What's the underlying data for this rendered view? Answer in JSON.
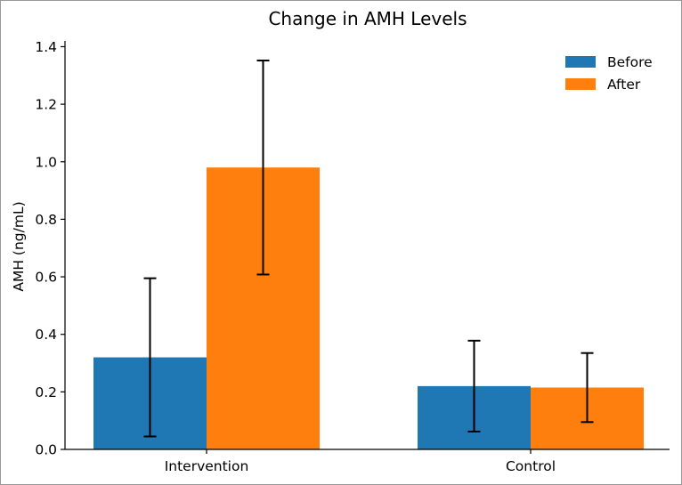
{
  "chart_data": {
    "type": "bar",
    "title": "Change in AMH Levels",
    "xlabel": "",
    "ylabel": "AMH (ng/mL)",
    "categories": [
      "Intervention",
      "Control"
    ],
    "series": [
      {
        "name": "Before",
        "color": "#1f77b4",
        "values": [
          0.32,
          0.22
        ],
        "errors": [
          0.275,
          0.158
        ]
      },
      {
        "name": "After",
        "color": "#ff7f0e",
        "values": [
          0.98,
          0.215
        ],
        "errors": [
          0.372,
          0.12
        ]
      }
    ],
    "ylim": [
      0,
      1.42
    ],
    "yticks": [
      "0.0",
      "0.2",
      "0.4",
      "0.6",
      "0.8",
      "1.0",
      "1.2",
      "1.4"
    ],
    "grid": false,
    "legend_position": "top-right"
  }
}
